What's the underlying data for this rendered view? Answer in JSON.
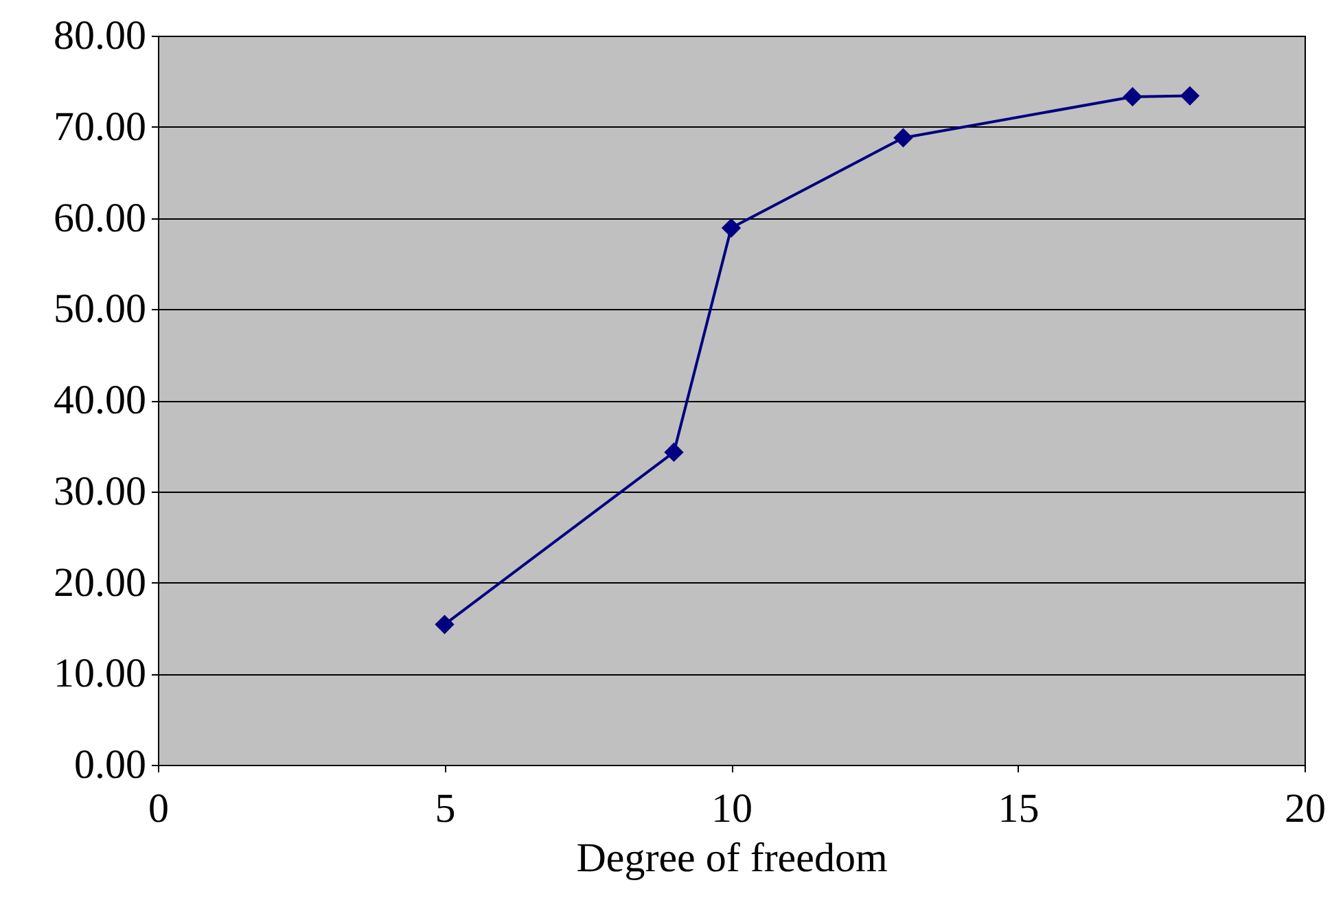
{
  "chart_data": {
    "type": "line",
    "xlabel": "Degree of freedom",
    "x": [
      5,
      9,
      10,
      13,
      17,
      18
    ],
    "series": [
      {
        "color": "#000080",
        "values": [
          15.4,
          34.3,
          58.9,
          68.8,
          73.3,
          73.4
        ]
      }
    ],
    "xlim": [
      0,
      20
    ],
    "xticks": [
      0,
      5,
      10,
      15,
      20
    ],
    "ylim": [
      0,
      80
    ],
    "yticks": [
      {
        "value": 0,
        "label": "0.00"
      },
      {
        "value": 10,
        "label": "10.00"
      },
      {
        "value": 20,
        "label": "20.00"
      },
      {
        "value": 30,
        "label": "30.00"
      },
      {
        "value": 40,
        "label": "40.00"
      },
      {
        "value": 50,
        "label": "50.00"
      },
      {
        "value": 60,
        "label": "60.00"
      },
      {
        "value": 70,
        "label": "70.00"
      },
      {
        "value": 80,
        "label": "80.00"
      }
    ],
    "grid": "y",
    "marker": "diamond",
    "line_style": "solid",
    "legend": false
  }
}
